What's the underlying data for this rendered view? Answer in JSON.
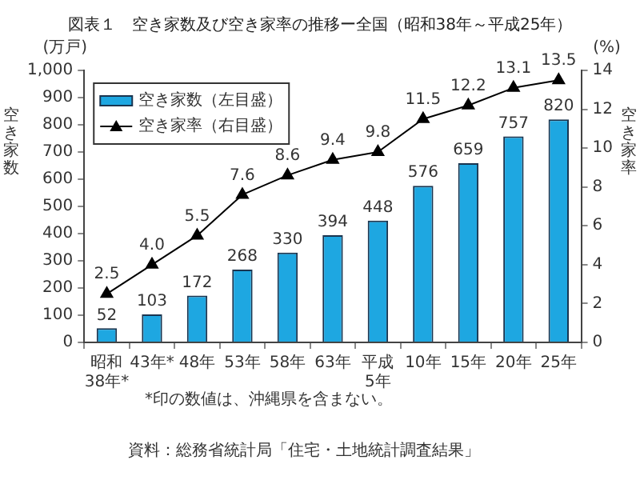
{
  "chart_data": {
    "type": "bar",
    "title": "図表１　空き家数及び空き家率の推移ー全国（昭和38年～平成25年）",
    "categories": [
      "昭和\n38年*",
      "43年*",
      "48年",
      "53年",
      "58年",
      "63年",
      "平成\n5年",
      "10年",
      "15年",
      "20年",
      "25年"
    ],
    "series": [
      {
        "name": "空き家数（左目盛）",
        "color": "#1ea7e1",
        "values": [
          52,
          103,
          172,
          268,
          330,
          394,
          448,
          576,
          659,
          757,
          820
        ]
      },
      {
        "name": "空き家率（右目盛）",
        "type": "line",
        "axis": "y2",
        "color": "#000000",
        "values": [
          2.5,
          4.0,
          5.5,
          7.6,
          8.6,
          9.4,
          9.8,
          11.5,
          12.2,
          13.1,
          13.5
        ],
        "value_labels": [
          "2.5",
          "4.0",
          "5.5",
          "7.6",
          "8.6",
          "9.4",
          "9.8",
          "11.5",
          "12.2",
          "13.1",
          "13.5"
        ]
      }
    ],
    "ylabel": "空き家数",
    "y2label": "空き家率",
    "ylim": [
      0,
      1000
    ],
    "yticks": [
      0,
      100,
      200,
      300,
      400,
      500,
      600,
      700,
      800,
      900,
      {
        "value": 1000,
        "label": "1,000"
      }
    ],
    "y2lim": [
      0,
      14
    ],
    "y2ticks": [
      0,
      2,
      4,
      6,
      8,
      10,
      12,
      14
    ],
    "annotations": [
      "(万戸)",
      "(%)",
      "*印の数値は、沖縄県を含まない。",
      "資料：総務省統計局「住宅・土地統計調査結果」"
    ],
    "data_labels": true,
    "grid": false,
    "legend": "top left",
    "marker": "triangle",
    "line_style": "solid"
  }
}
